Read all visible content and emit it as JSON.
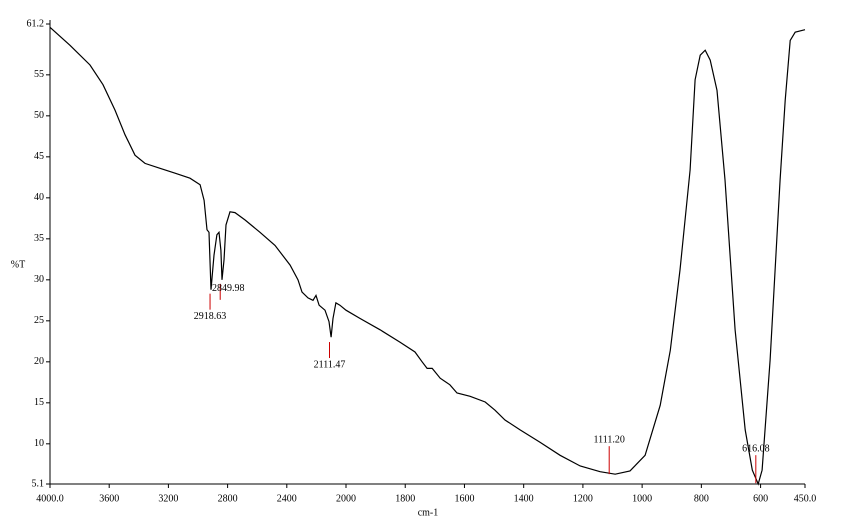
{
  "chart_data": {
    "type": "line",
    "y_label": "%T",
    "x_label": "cm-1",
    "xlim": [
      4000,
      450
    ],
    "x_scale_break": 2000,
    "xticks": [
      {
        "value": 4000,
        "label": "4000.0"
      },
      3600,
      3200,
      2800,
      2400,
      2000,
      1800,
      1600,
      1400,
      1200,
      1000,
      800,
      600,
      {
        "value": 450,
        "label": "450.0"
      }
    ],
    "ylim": [
      5.1,
      61.2
    ],
    "yticks": [
      5.1,
      10,
      15,
      20,
      25,
      30,
      35,
      40,
      45,
      50,
      55,
      61.2
    ],
    "series": [
      {
        "color": "#000000",
        "x": [
          4000,
          3865,
          3730,
          3642,
          3561,
          3493,
          3426,
          3358,
          3257,
          3155,
          3054,
          2986,
          2959,
          2939,
          2926,
          2912,
          2892,
          2872,
          2858,
          2845,
          2838,
          2824,
          2811,
          2784,
          2750,
          2682,
          2581,
          2480,
          2378,
          2324,
          2297,
          2257,
          2223,
          2203,
          2182,
          2142,
          2115,
          2101,
          2088,
          2068,
          2041,
          2000,
          1953,
          1885,
          1818,
          1767,
          1743,
          1726,
          1709,
          1682,
          1649,
          1625,
          1581,
          1530,
          1497,
          1463,
          1412,
          1345,
          1277,
          1209,
          1142,
          1091,
          1041,
          990,
          939,
          905,
          872,
          838,
          821,
          804,
          787,
          770,
          747,
          720,
          686,
          652,
          628,
          608,
          595,
          568,
          534,
          517,
          500,
          483,
          450
        ],
        "values": [
          60.8,
          58.6,
          56.2,
          53.8,
          50.7,
          47.7,
          45.2,
          44.2,
          43.6,
          43.0,
          42.4,
          41.6,
          39.7,
          36.1,
          35.8,
          28.8,
          33.0,
          35.5,
          35.8,
          33.6,
          30.0,
          32.4,
          36.7,
          38.3,
          38.2,
          37.3,
          35.8,
          34.2,
          31.8,
          30.0,
          28.5,
          27.8,
          27.5,
          28.1,
          26.9,
          26.3,
          24.9,
          23.0,
          25.3,
          27.2,
          26.9,
          26.3,
          25.3,
          23.9,
          22.4,
          21.2,
          20.0,
          19.2,
          19.2,
          18.0,
          17.2,
          16.2,
          15.8,
          15.1,
          14.1,
          12.9,
          11.7,
          10.2,
          8.6,
          7.3,
          6.6,
          6.3,
          6.7,
          8.6,
          14.7,
          21.4,
          31.2,
          43.4,
          54.4,
          57.4,
          58.0,
          56.8,
          53.1,
          42.2,
          23.9,
          11.7,
          6.8,
          5.1,
          6.8,
          20.2,
          42.2,
          51.9,
          59.2,
          60.2,
          60.5
        ]
      }
    ],
    "peaks": {
      "color": "#cc0000",
      "values": [
        2918.63,
        2849.98,
        2111.47,
        1111.2,
        616.08
      ],
      "value_labels": [
        "2918.63",
        "2849.98",
        "2111.47",
        "1111.20",
        "616.08"
      ],
      "y": [
        28.8,
        30.0,
        22.9,
        6.3,
        5.2
      ]
    }
  }
}
